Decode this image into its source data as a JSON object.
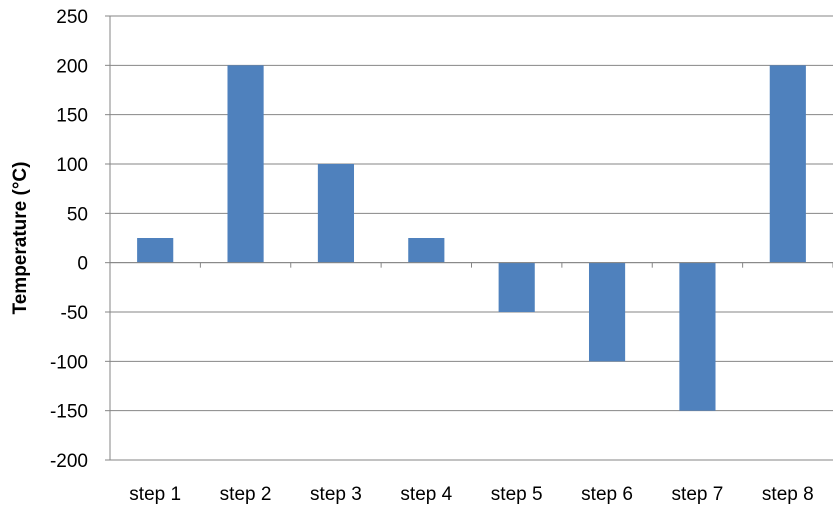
{
  "chart_data": {
    "type": "bar",
    "categories": [
      "step 1",
      "step 2",
      "step 3",
      "step 4",
      "step 5",
      "step 6",
      "step 7",
      "step 8"
    ],
    "values": [
      25,
      200,
      100,
      25,
      -50,
      -100,
      -150,
      200
    ],
    "ylabel": "Temperature (°C)",
    "ylim": [
      -200,
      250
    ],
    "yticks": [
      -200,
      -150,
      -100,
      -50,
      0,
      50,
      100,
      150,
      200,
      250
    ],
    "grid": true,
    "legend": "none"
  },
  "colors": {
    "bar": "#4f81bd",
    "grid": "#868686",
    "axis": "#868686"
  }
}
